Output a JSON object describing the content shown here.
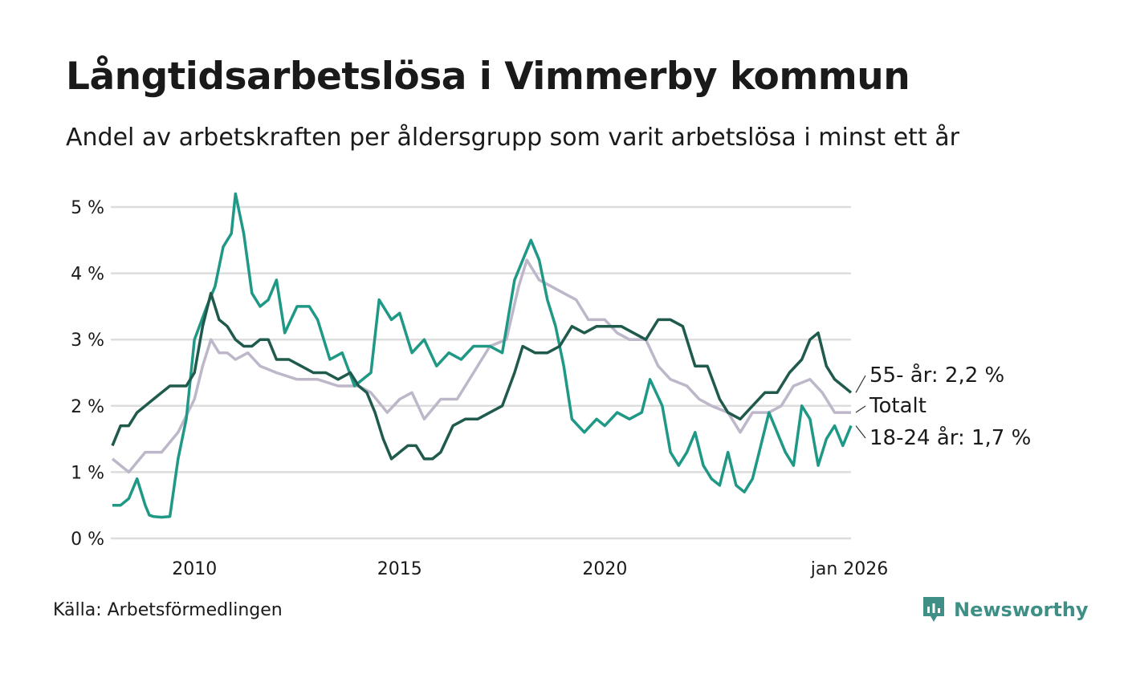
{
  "header": {
    "title": "Långtidsarbetslösa i Vimmerby kommun",
    "subtitle": "Andel av arbetskraften per åldersgrupp som varit arbetslösa i minst ett år"
  },
  "footer": {
    "source": "Källa: Arbetsförmedlingen",
    "brand": "Newsworthy"
  },
  "colors": {
    "series_55": "#1f5a4c",
    "series_total": "#bdb7c9",
    "series_1824": "#1f9886",
    "grid": "#dddddd",
    "brand": "#3f8f87"
  },
  "chart_data": {
    "type": "line",
    "title": "Långtidsarbetslösa i Vimmerby kommun",
    "subtitle": "Andel av arbetskraften per åldersgrupp som varit arbetslösa i minst ett år",
    "xlabel": "",
    "ylabel": "",
    "xlim": [
      2008.0,
      2026.0
    ],
    "ylim": [
      0,
      5
    ],
    "y_ticks": [
      {
        "value": 0,
        "label": "0 %"
      },
      {
        "value": 1,
        "label": "1 %"
      },
      {
        "value": 2,
        "label": "2 %"
      },
      {
        "value": 3,
        "label": "3 %"
      },
      {
        "value": 4,
        "label": "4 %"
      },
      {
        "value": 5,
        "label": "5 %"
      }
    ],
    "x_ticks": [
      {
        "value": 2010,
        "label": "2010"
      },
      {
        "value": 2015,
        "label": "2015"
      },
      {
        "value": 2020,
        "label": "2020"
      },
      {
        "value": 2026.0,
        "label": "jan 2026"
      }
    ],
    "grid": true,
    "series": [
      {
        "name": "Totalt",
        "key": "series_total",
        "end_label": "Totalt",
        "x": [
          2008.0,
          2008.4,
          2008.8,
          2009.2,
          2009.6,
          2010.0,
          2010.2,
          2010.4,
          2010.6,
          2010.8,
          2011.0,
          2011.3,
          2011.6,
          2012.0,
          2012.5,
          2013.0,
          2013.5,
          2014.0,
          2014.3,
          2014.7,
          2015.0,
          2015.3,
          2015.6,
          2016.0,
          2016.4,
          2016.8,
          2017.2,
          2017.6,
          2017.9,
          2018.1,
          2018.4,
          2018.7,
          2019.0,
          2019.3,
          2019.6,
          2020.0,
          2020.3,
          2020.6,
          2021.0,
          2021.3,
          2021.6,
          2022.0,
          2022.3,
          2022.6,
          2023.0,
          2023.3,
          2023.6,
          2024.0,
          2024.3,
          2024.6,
          2025.0,
          2025.3,
          2025.6,
          2026.0
        ],
        "values": [
          1.2,
          1.0,
          1.3,
          1.3,
          1.6,
          2.1,
          2.6,
          3.0,
          2.8,
          2.8,
          2.7,
          2.8,
          2.6,
          2.5,
          2.4,
          2.4,
          2.3,
          2.3,
          2.2,
          1.9,
          2.1,
          2.2,
          1.8,
          2.1,
          2.1,
          2.5,
          2.9,
          3.0,
          3.8,
          4.2,
          3.9,
          3.8,
          3.7,
          3.6,
          3.3,
          3.3,
          3.1,
          3.0,
          3.0,
          2.6,
          2.4,
          2.3,
          2.1,
          2.0,
          1.9,
          1.6,
          1.9,
          1.9,
          2.0,
          2.3,
          2.4,
          2.2,
          1.9,
          1.9
        ]
      },
      {
        "name": "18-24 år",
        "key": "series_1824",
        "end_label": "18-24 år: 1,7 %",
        "x": [
          2008.0,
          2008.2,
          2008.4,
          2008.6,
          2008.8,
          2008.9,
          2009.0,
          2009.2,
          2009.4,
          2009.6,
          2009.8,
          2010.0,
          2010.3,
          2010.5,
          2010.7,
          2010.9,
          2011.0,
          2011.2,
          2011.4,
          2011.6,
          2011.8,
          2012.0,
          2012.2,
          2012.5,
          2012.8,
          2013.0,
          2013.3,
          2013.6,
          2013.9,
          2014.1,
          2014.3,
          2014.5,
          2014.8,
          2015.0,
          2015.3,
          2015.6,
          2015.9,
          2016.2,
          2016.5,
          2016.8,
          2017.2,
          2017.5,
          2017.8,
          2018.0,
          2018.2,
          2018.4,
          2018.6,
          2018.8,
          2019.0,
          2019.2,
          2019.5,
          2019.8,
          2020.0,
          2020.3,
          2020.6,
          2020.9,
          2021.1,
          2021.4,
          2021.6,
          2021.8,
          2022.0,
          2022.2,
          2022.4,
          2022.6,
          2022.8,
          2023.0,
          2023.2,
          2023.4,
          2023.6,
          2023.8,
          2024.0,
          2024.2,
          2024.4,
          2024.6,
          2024.8,
          2025.0,
          2025.2,
          2025.4,
          2025.6,
          2025.8,
          2026.0
        ],
        "values": [
          0.5,
          0.5,
          0.6,
          0.9,
          0.5,
          0.35,
          0.33,
          0.32,
          0.33,
          1.2,
          1.8,
          3.0,
          3.5,
          3.8,
          4.4,
          4.6,
          5.2,
          4.6,
          3.7,
          3.5,
          3.6,
          3.9,
          3.1,
          3.5,
          3.5,
          3.3,
          2.7,
          2.8,
          2.3,
          2.4,
          2.5,
          3.6,
          3.3,
          3.4,
          2.8,
          3.0,
          2.6,
          2.8,
          2.7,
          2.9,
          2.9,
          2.8,
          3.9,
          4.2,
          4.5,
          4.2,
          3.6,
          3.2,
          2.6,
          1.8,
          1.6,
          1.8,
          1.7,
          1.9,
          1.8,
          1.9,
          2.4,
          2.0,
          1.3,
          1.1,
          1.3,
          1.6,
          1.1,
          0.9,
          0.8,
          1.3,
          0.8,
          0.7,
          0.9,
          1.4,
          1.9,
          1.6,
          1.3,
          1.1,
          2.0,
          1.8,
          1.1,
          1.5,
          1.7,
          1.4,
          1.7
        ]
      },
      {
        "name": "55- år",
        "key": "series_55",
        "end_label": "55- år: 2,2 %",
        "x": [
          2008.0,
          2008.2,
          2008.4,
          2008.6,
          2008.8,
          2009.0,
          2009.2,
          2009.4,
          2009.6,
          2009.8,
          2010.0,
          2010.2,
          2010.4,
          2010.6,
          2010.8,
          2011.0,
          2011.2,
          2011.4,
          2011.6,
          2011.8,
          2012.0,
          2012.3,
          2012.6,
          2012.9,
          2013.2,
          2013.5,
          2013.8,
          2014.0,
          2014.2,
          2014.4,
          2014.6,
          2014.8,
          2015.0,
          2015.2,
          2015.4,
          2015.6,
          2015.8,
          2016.0,
          2016.3,
          2016.6,
          2016.9,
          2017.2,
          2017.5,
          2017.8,
          2018.0,
          2018.3,
          2018.6,
          2018.9,
          2019.2,
          2019.5,
          2019.8,
          2020.1,
          2020.4,
          2020.7,
          2021.0,
          2021.3,
          2021.6,
          2021.9,
          2022.2,
          2022.5,
          2022.8,
          2023.0,
          2023.3,
          2023.6,
          2023.9,
          2024.2,
          2024.5,
          2024.8,
          2025.0,
          2025.2,
          2025.4,
          2025.6,
          2025.8,
          2026.0
        ],
        "values": [
          1.4,
          1.7,
          1.7,
          1.9,
          2.0,
          2.1,
          2.2,
          2.3,
          2.3,
          2.3,
          2.5,
          3.2,
          3.7,
          3.3,
          3.2,
          3.0,
          2.9,
          2.9,
          3.0,
          3.0,
          2.7,
          2.7,
          2.6,
          2.5,
          2.5,
          2.4,
          2.5,
          2.3,
          2.2,
          1.9,
          1.5,
          1.2,
          1.3,
          1.4,
          1.4,
          1.2,
          1.2,
          1.3,
          1.7,
          1.8,
          1.8,
          1.9,
          2.0,
          2.5,
          2.9,
          2.8,
          2.8,
          2.9,
          3.2,
          3.1,
          3.2,
          3.2,
          3.2,
          3.1,
          3.0,
          3.3,
          3.3,
          3.2,
          2.6,
          2.6,
          2.1,
          1.9,
          1.8,
          2.0,
          2.2,
          2.2,
          2.5,
          2.7,
          3.0,
          3.1,
          2.6,
          2.4,
          2.3,
          2.2
        ]
      }
    ]
  }
}
